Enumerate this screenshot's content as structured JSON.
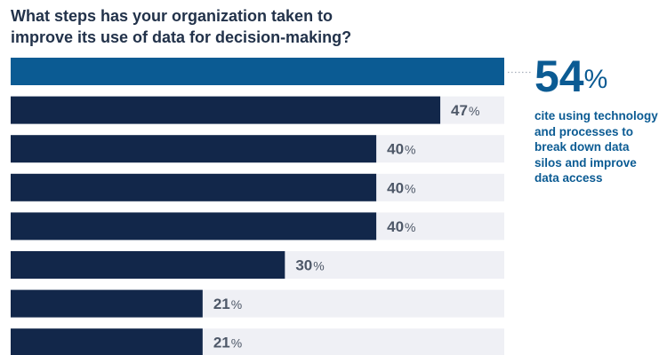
{
  "chart_data": {
    "type": "bar",
    "orientation": "horizontal",
    "title_lines": [
      "What steps has your organization taken to",
      "improve its use of data for decision-making?"
    ],
    "categories": [
      "",
      "",
      "",
      "",
      "",
      "",
      "",
      ""
    ],
    "values": [
      54,
      47,
      40,
      40,
      40,
      30,
      21,
      21
    ],
    "value_labels": [
      "",
      "47%",
      "40%",
      "40%",
      "40%",
      "30%",
      "21%",
      "21%"
    ],
    "xlim": [
      0,
      54
    ],
    "grid": false,
    "colors": {
      "highlight": "#0b5b93",
      "bar": "#12274a",
      "track": "#eff0f5",
      "label": "#4e5868",
      "callout": "#0b5b93",
      "leader": "#a8b0bc"
    },
    "callout": {
      "number": "54",
      "unit": "%",
      "text_lines": [
        "cite using technology",
        "and processes to",
        "break down data",
        "silos and improve",
        "data access"
      ]
    }
  }
}
